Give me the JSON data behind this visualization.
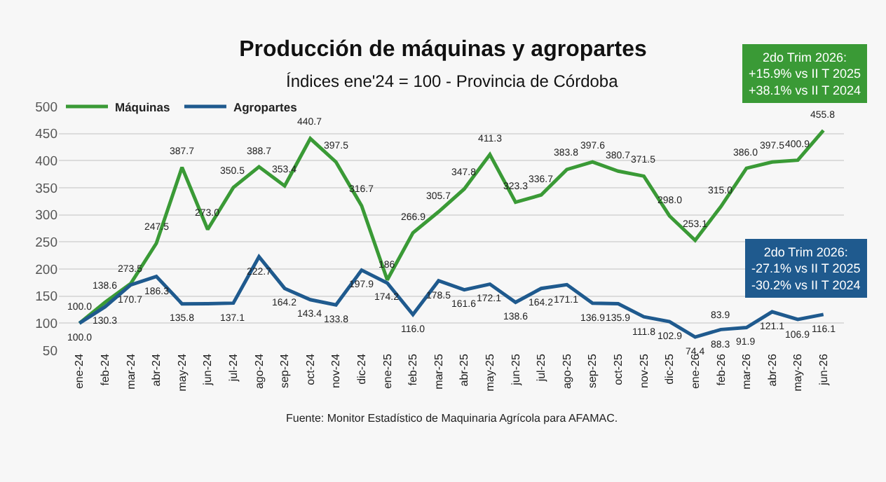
{
  "chart_data": {
    "type": "line",
    "title": "Producción de máquinas y agropartes",
    "subtitle": "Índices ene'24 = 100 - Provincia de Córdoba",
    "categories": [
      "ene-24",
      "feb-24",
      "mar-24",
      "abr-24",
      "may-24",
      "jun-24",
      "jul-24",
      "ago-24",
      "sep-24",
      "oct-24",
      "nov-24",
      "dic-24",
      "ene-25",
      "feb-25",
      "mar-25",
      "abr-25",
      "may-25",
      "jun-25",
      "jul-25",
      "ago-25",
      "sep-25",
      "oct-25",
      "nov-25",
      "dic-25",
      "ene-26",
      "feb-26",
      "mar-26",
      "abr-26",
      "may-26",
      "jun-26"
    ],
    "series": [
      {
        "name": "Máquinas",
        "color": "#3a9a36",
        "values": [
          100.0,
          138.6,
          173,
          247.5,
          387.7,
          273.0,
          350.5,
          388.7,
          353.4,
          440.7,
          397.5,
          316.7,
          180,
          266.9,
          305.7,
          347.8,
          411.3,
          323.3,
          336.7,
          383.8,
          397.6,
          380.7,
          371.5,
          298.0,
          253.1,
          315.0,
          386.0,
          397.5,
          400.9,
          455.8
        ],
        "value_labels": [
          "100.0",
          "138.6",
          null,
          "247.5",
          "387.7",
          "273.0",
          "350.5",
          "388.7",
          "353.4",
          "440.7",
          "397.5",
          "316.7",
          null,
          "266.9",
          "305.7",
          "347.8",
          "411.3",
          "323.3",
          "336.7",
          "383.8",
          "397.6",
          "380.7",
          "371.5",
          "298.0",
          "253.1",
          "315.0",
          "386.0",
          "397.5",
          "400.9",
          "455.8"
        ]
      },
      {
        "name": "Agropartes",
        "color": "#1f5a8e",
        "values": [
          100.0,
          130.3,
          170.7,
          186.3,
          135.8,
          136,
          137.1,
          222.7,
          164.2,
          143.4,
          133.8,
          197.9,
          174.2,
          116.0,
          178.5,
          161.6,
          172.1,
          138.6,
          164.2,
          171.1,
          136.9,
          135.9,
          111.8,
          102.9,
          74.4,
          88.3,
          91.9,
          121.1,
          106.9,
          116.1
        ],
        "value_labels": [
          "100.0",
          "130.3",
          "170.7",
          "186.3",
          "135.8",
          null,
          "137.1",
          "222.7",
          "164.2",
          "143.4",
          "133.8",
          "197.9",
          "174.2",
          "116.0",
          "178.5",
          "161.6",
          "172.1",
          "138.6",
          "164.2",
          "171.1",
          "136.9",
          "135.9",
          "111.8",
          "102.9",
          "74.4",
          "88.3",
          "91.9",
          "121.1",
          "106.9",
          "116.1"
        ]
      }
    ],
    "ylim": [
      50,
      500
    ],
    "yticks": [
      50,
      100,
      150,
      200,
      250,
      300,
      350,
      400,
      450,
      500
    ],
    "grid": "y",
    "legend": "top left",
    "marker": "none",
    "annotations": [
      "2do Trim 2026:\n+15.9% vs II T 2025\n+38.1% vs II T 2024",
      "2do Trim 2026:\n-27.1% vs II T 2025\n-30.2% vs II T 2024",
      {
        "text": "83.9",
        "x": "feb-26",
        "y": 88.3
      },
      {
        "text": "273.5",
        "x": "mar-24",
        "y": 173
      },
      {
        "text": "186",
        "x": "ene-25",
        "y": 180
      },
      "Fuente: Monitor Estadístico de Maquinaria Agrícola para AFAMAC."
    ]
  }
}
